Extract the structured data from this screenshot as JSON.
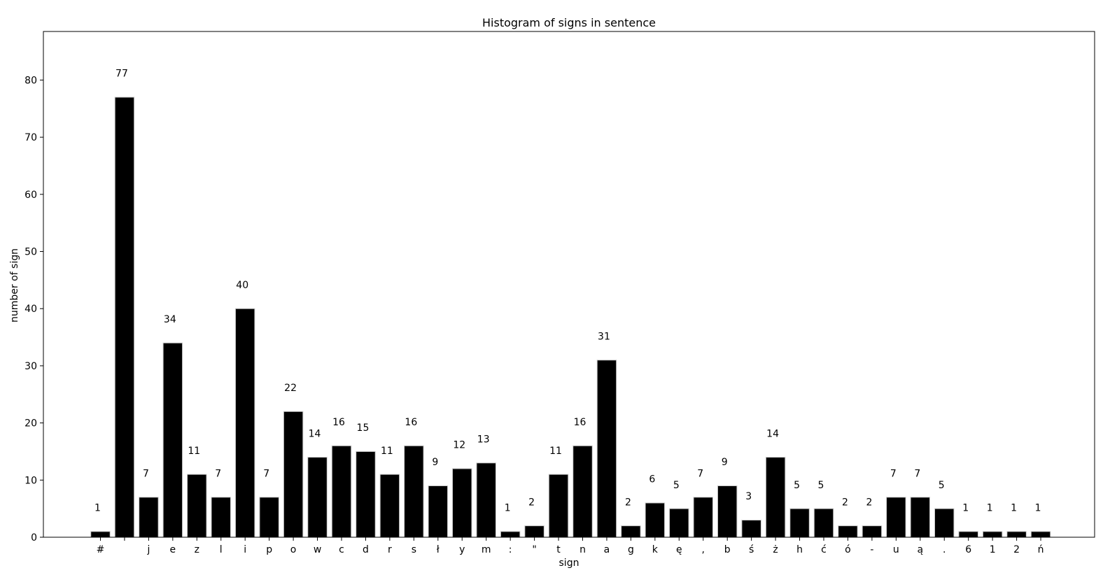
{
  "chart_data": {
    "type": "bar",
    "title": "Histogram of signs in sentence",
    "xlabel": "sign",
    "ylabel": "number of sign",
    "ylim": [
      0,
      88.5
    ],
    "yticks": [
      0,
      10,
      20,
      30,
      40,
      50,
      60,
      70,
      80
    ],
    "categories": [
      "#",
      " ",
      "j",
      "e",
      "z",
      "l",
      "i",
      "p",
      "o",
      "w",
      "c",
      "d",
      "r",
      "s",
      "ł",
      "y",
      "m",
      ":",
      "\"",
      "t",
      "n",
      "a",
      "g",
      "k",
      "ę",
      ",",
      "b",
      "ś",
      "ż",
      "h",
      "ć",
      "ó",
      "-",
      "u",
      "ą",
      ".",
      "6",
      "1",
      "2",
      "ń"
    ],
    "values": [
      1,
      77,
      7,
      34,
      11,
      7,
      40,
      7,
      22,
      14,
      16,
      15,
      11,
      16,
      9,
      12,
      13,
      1,
      2,
      11,
      16,
      31,
      2,
      6,
      5,
      7,
      9,
      3,
      14,
      5,
      5,
      2,
      2,
      7,
      7,
      5,
      1,
      1,
      1,
      1
    ],
    "bar_color": "#000000",
    "bar_edge_color": "#cccccc",
    "grid": false,
    "legend": "none"
  }
}
